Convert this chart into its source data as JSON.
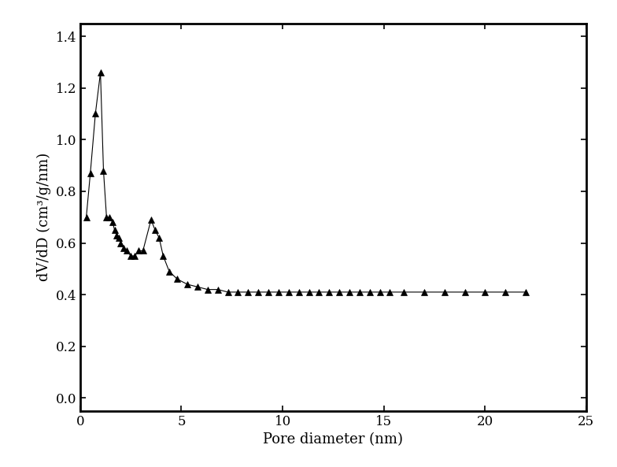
{
  "x": [
    0.3,
    0.5,
    0.75,
    1.0,
    1.15,
    1.3,
    1.45,
    1.6,
    1.7,
    1.8,
    1.9,
    2.0,
    2.15,
    2.3,
    2.5,
    2.7,
    2.9,
    3.1,
    3.5,
    3.7,
    3.9,
    4.1,
    4.4,
    4.8,
    5.3,
    5.8,
    6.3,
    6.8,
    7.3,
    7.8,
    8.3,
    8.8,
    9.3,
    9.8,
    10.3,
    10.8,
    11.3,
    11.8,
    12.3,
    12.8,
    13.3,
    13.8,
    14.3,
    14.8,
    15.3,
    16.0,
    17.0,
    18.0,
    19.0,
    20.0,
    21.0,
    22.0
  ],
  "y": [
    0.7,
    0.87,
    1.1,
    1.26,
    0.88,
    0.7,
    0.7,
    0.68,
    0.65,
    0.63,
    0.62,
    0.6,
    0.58,
    0.57,
    0.55,
    0.55,
    0.57,
    0.57,
    0.69,
    0.65,
    0.62,
    0.55,
    0.49,
    0.46,
    0.44,
    0.43,
    0.42,
    0.42,
    0.41,
    0.41,
    0.41,
    0.41,
    0.41,
    0.41,
    0.41,
    0.41,
    0.41,
    0.41,
    0.41,
    0.41,
    0.41,
    0.41,
    0.41,
    0.41,
    0.41,
    0.41,
    0.41,
    0.41,
    0.41,
    0.41,
    0.41,
    0.41
  ],
  "xlabel": "Pore diameter (nm)",
  "ylabel": "dV/dD (cm³/g/nm)",
  "xlim": [
    0,
    25
  ],
  "ylim": [
    -0.05,
    1.45
  ],
  "xticks": [
    0,
    5,
    10,
    15,
    20,
    25
  ],
  "yticks": [
    0.0,
    0.2,
    0.4,
    0.6,
    0.8,
    1.0,
    1.2,
    1.4
  ],
  "marker": "^",
  "marker_color": "#000000",
  "line_color": "#000000",
  "marker_size": 6,
  "line_width": 0.8,
  "background_color": "#ffffff",
  "tick_fontsize": 12,
  "label_fontsize": 13,
  "spine_linewidth": 2.0
}
